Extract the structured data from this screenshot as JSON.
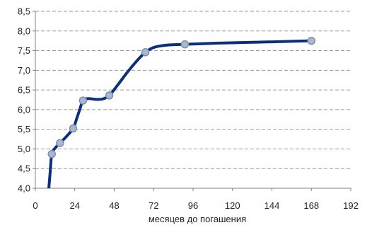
{
  "chart_data": {
    "type": "line",
    "xlabel": "месяцев до погашения",
    "ylabel": "",
    "xlim": [
      0,
      192
    ],
    "ylim": [
      4.0,
      8.5
    ],
    "x_ticks": [
      0,
      24,
      48,
      72,
      96,
      120,
      144,
      168,
      192
    ],
    "x_tick_labels": [
      "0",
      "24",
      "48",
      "72",
      "96",
      "120",
      "144",
      "168",
      "192"
    ],
    "y_ticks": [
      4.0,
      4.5,
      5.0,
      5.5,
      6.0,
      6.5,
      7.0,
      7.5,
      8.0,
      8.5
    ],
    "y_tick_labels": [
      "4,0",
      "4,5",
      "5,0",
      "5,5",
      "6,0",
      "6,5",
      "7,0",
      "7,5",
      "8,0",
      "8,5"
    ],
    "grid": "horizontal dashed",
    "series": [
      {
        "curve": [
          [
            8,
            3.9
          ],
          [
            9,
            4.4
          ],
          [
            10,
            4.87
          ],
          [
            12,
            5.02
          ],
          [
            15,
            5.15
          ],
          [
            19,
            5.32
          ],
          [
            23,
            5.52
          ],
          [
            25,
            5.75
          ],
          [
            27,
            6.0
          ],
          [
            29,
            6.23
          ],
          [
            32,
            6.28
          ],
          [
            37,
            6.26
          ],
          [
            41,
            6.27
          ],
          [
            45,
            6.36
          ],
          [
            50,
            6.62
          ],
          [
            56,
            6.95
          ],
          [
            62,
            7.25
          ],
          [
            67,
            7.46
          ],
          [
            72,
            7.58
          ],
          [
            80,
            7.64
          ],
          [
            91,
            7.66
          ],
          [
            110,
            7.69
          ],
          [
            130,
            7.71
          ],
          [
            150,
            7.73
          ],
          [
            168,
            7.75
          ]
        ],
        "markers": [
          [
            10,
            4.87
          ],
          [
            15,
            5.15
          ],
          [
            23,
            5.52
          ],
          [
            29,
            6.23
          ],
          [
            45,
            6.36
          ],
          [
            67,
            7.46
          ],
          [
            91,
            7.66
          ],
          [
            168,
            7.75
          ]
        ],
        "color": "#0b2f7a"
      }
    ],
    "marker_fill": "#a9b8d0",
    "marker_stroke": "#7f8fa8"
  }
}
